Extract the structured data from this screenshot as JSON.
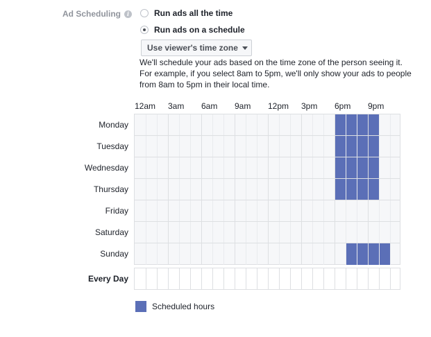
{
  "section": {
    "label": "Ad Scheduling",
    "info_icon": "info-icon"
  },
  "options": [
    {
      "label": "Run ads all the time",
      "selected": false
    },
    {
      "label": "Run ads on a schedule",
      "selected": true
    }
  ],
  "timezone_dropdown": {
    "value": "Use viewer's time zone",
    "icon": "caret-down-icon"
  },
  "help_lines": [
    "We'll schedule your ads based on the time zone of the person seeing it.",
    "For example, if you select 8am to 5pm, we'll only show your ads to people",
    "from 8am to 5pm in their local time."
  ],
  "schedule": {
    "hour_labels": [
      "12am",
      "3am",
      "6am",
      "9am",
      "12pm",
      "3pm",
      "6pm",
      "9pm"
    ],
    "days": [
      {
        "name": "Monday",
        "scheduled_hours": [
          18,
          19,
          20,
          21
        ]
      },
      {
        "name": "Tuesday",
        "scheduled_hours": [
          18,
          19,
          20,
          21
        ]
      },
      {
        "name": "Wednesday",
        "scheduled_hours": [
          18,
          19,
          20,
          21
        ]
      },
      {
        "name": "Thursday",
        "scheduled_hours": [
          18,
          19,
          20,
          21
        ]
      },
      {
        "name": "Friday",
        "scheduled_hours": []
      },
      {
        "name": "Saturday",
        "scheduled_hours": []
      },
      {
        "name": "Sunday",
        "scheduled_hours": [
          19,
          20,
          21,
          22
        ]
      }
    ],
    "every_day_label": "Every Day",
    "scheduled_color": "#5b6fb7"
  },
  "legend": {
    "label": "Scheduled hours"
  }
}
